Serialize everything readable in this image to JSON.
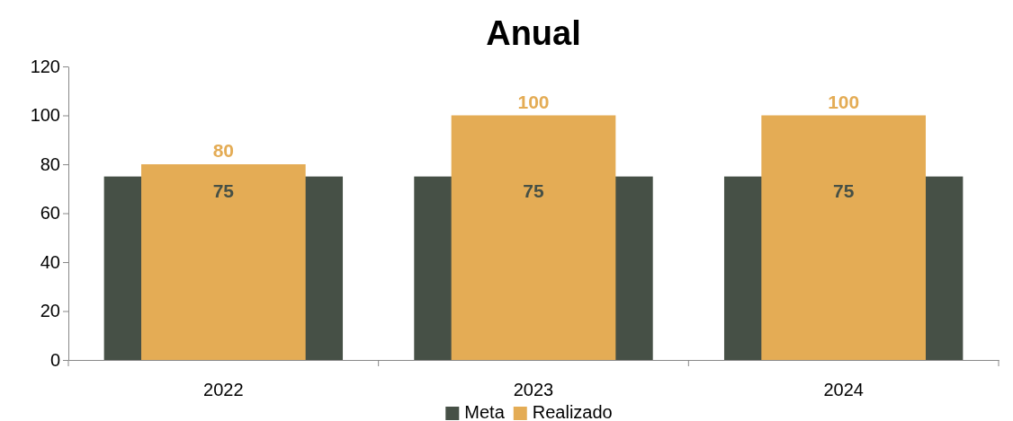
{
  "chart_data": {
    "type": "bar",
    "title": "Anual",
    "categories": [
      "2022",
      "2023",
      "2024"
    ],
    "series": [
      {
        "name": "Meta",
        "color": "#465046",
        "values": [
          75,
          75,
          75
        ]
      },
      {
        "name": "Realizado",
        "color": "#e4ac55",
        "values": [
          80,
          100,
          100
        ]
      }
    ],
    "ylim": [
      0,
      120
    ],
    "yticks": [
      0,
      20,
      40,
      60,
      80,
      100,
      120
    ],
    "data_labels": true,
    "legend": "bottom",
    "grid": false
  }
}
